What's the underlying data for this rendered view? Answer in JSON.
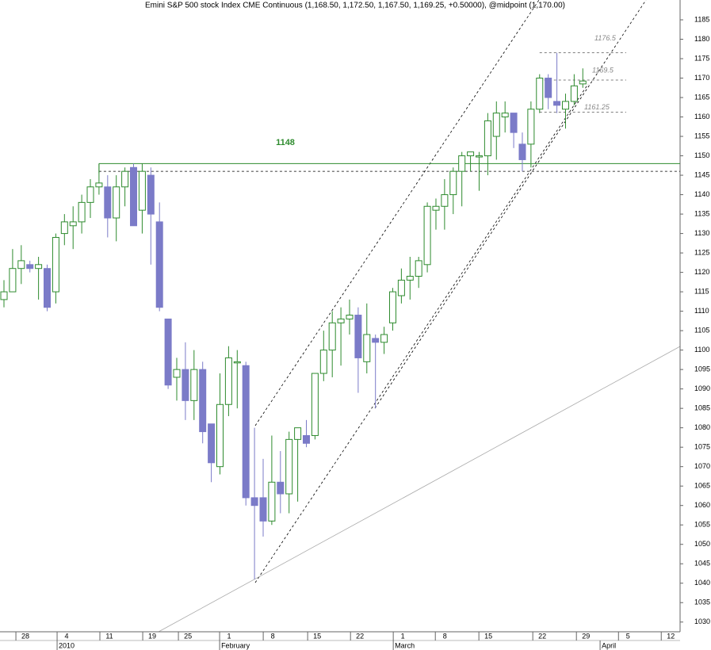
{
  "chart_data": {
    "type": "candlestick",
    "title": "Emini S&P 500 stock Index CME Continuous (1,168.50, 1,172.50, 1,167.50, 1,169.25, +0.50000), @midpoint (1,170.00)",
    "x": [
      0,
      1,
      2,
      3,
      4,
      5,
      6,
      7,
      8,
      9,
      10,
      11,
      12,
      13,
      14,
      15,
      16,
      17,
      18,
      19,
      20,
      21,
      22,
      23,
      24,
      25,
      26,
      27,
      28,
      29,
      30,
      31,
      32,
      33,
      34,
      35,
      36,
      37,
      38,
      39,
      40,
      41,
      42,
      43,
      44,
      45,
      46,
      47,
      48,
      49,
      50,
      51,
      52,
      53,
      54,
      55,
      56,
      57,
      58,
      59,
      60,
      61,
      62,
      63,
      64,
      65,
      66,
      67
    ],
    "open": [
      1113,
      1115,
      1121,
      1122,
      1121,
      1121,
      1115,
      1130,
      1132,
      1133,
      1138,
      1142,
      1142,
      1134,
      1142,
      1147,
      1136,
      1145,
      1133,
      1108,
      1093,
      1095,
      1087,
      1095,
      1081,
      1070,
      1086,
      1097,
      1096,
      1062,
      1062,
      1056,
      1066,
      1063,
      1077,
      1078,
      1078,
      1094,
      1100,
      1107,
      1108,
      1109,
      1097,
      1103,
      1102,
      1107,
      1114,
      1118,
      1119,
      1122,
      1136,
      1137,
      1140,
      1146,
      1150,
      1150,
      1150,
      1155,
      1160,
      1161,
      1153,
      1153,
      1162,
      1170,
      1164,
      1162,
      1164,
      1168.5
    ],
    "high": [
      1118,
      1126,
      1127,
      1123,
      1124,
      1122,
      1130,
      1135,
      1137,
      1140,
      1144,
      1148,
      1145,
      1145,
      1147,
      1148,
      1148,
      1147,
      1138,
      1108,
      1098,
      1102,
      1100,
      1097,
      1081,
      1094,
      1101,
      1100,
      1097,
      1080,
      1072,
      1078,
      1074,
      1079,
      1080,
      1082,
      1094,
      1105,
      1110,
      1111,
      1113,
      1111,
      1112,
      1104,
      1106,
      1116,
      1121,
      1124,
      1124,
      1138,
      1139,
      1144,
      1147,
      1151,
      1151,
      1151,
      1161,
      1164,
      1164,
      1161,
      1156,
      1164,
      1171,
      1171,
      1176.5,
      1166,
      1171,
      1172.5
    ],
    "low": [
      1111,
      1115,
      1117,
      1120,
      1113,
      1110,
      1112,
      1127,
      1126,
      1130,
      1134,
      1140,
      1129,
      1128,
      1137,
      1132,
      1130,
      1122,
      1110,
      1090,
      1087,
      1082,
      1082,
      1076,
      1066,
      1068,
      1083,
      1085,
      1060,
      1041,
      1052,
      1055,
      1058,
      1058,
      1061,
      1075,
      1077,
      1092,
      1093,
      1096,
      1104,
      1089,
      1094,
      1085,
      1099,
      1105,
      1112,
      1113,
      1116,
      1120,
      1131,
      1131,
      1135,
      1137,
      1146,
      1141,
      1145,
      1149,
      1156,
      1152,
      1146,
      1147,
      1161,
      1162,
      1161,
      1157,
      1163,
      1167.5
    ],
    "close": [
      1115,
      1121,
      1123,
      1121,
      1122,
      1111,
      1129,
      1133,
      1133,
      1138,
      1142,
      1143,
      1134,
      1142,
      1146,
      1132,
      1146,
      1135,
      1111,
      1091,
      1095,
      1087,
      1095,
      1079,
      1071,
      1086,
      1098,
      1097,
      1062,
      1060,
      1056,
      1066,
      1063,
      1077,
      1080,
      1076,
      1094,
      1100,
      1107,
      1108,
      1109,
      1098,
      1104,
      1102,
      1104,
      1115,
      1118,
      1119,
      1123,
      1137,
      1137,
      1140,
      1146,
      1150,
      1151,
      1150,
      1159,
      1161,
      1161,
      1156,
      1149,
      1162,
      1170,
      1165,
      1163,
      1164,
      1168,
      1169.25
    ],
    "up_color": "#2e8b2e",
    "down_color": "#7b7bc8",
    "xlim": [
      -0.46,
      78.26
    ],
    "ylim": [
      1027.5,
      1190.1
    ],
    "yticks": [
      1030,
      1035,
      1040,
      1045,
      1050,
      1055,
      1060,
      1065,
      1070,
      1075,
      1080,
      1085,
      1090,
      1095,
      1100,
      1105,
      1110,
      1115,
      1120,
      1125,
      1130,
      1135,
      1140,
      1145,
      1150,
      1155,
      1160,
      1165,
      1170,
      1175,
      1180,
      1185
    ],
    "xticks": [
      {
        "value": 1.38,
        "label": "28"
      },
      {
        "value": 6.15,
        "label": "4"
      },
      {
        "value": 11.1,
        "label": "11"
      },
      {
        "value": 16.06,
        "label": "19"
      },
      {
        "value": 20.19,
        "label": "25"
      },
      {
        "value": 24.96,
        "label": "1"
      },
      {
        "value": 30.01,
        "label": "8"
      },
      {
        "value": 35.15,
        "label": "15"
      },
      {
        "value": 40.11,
        "label": "22"
      },
      {
        "value": 45.06,
        "label": "1"
      },
      {
        "value": 49.93,
        "label": "8"
      },
      {
        "value": 54.97,
        "label": "15"
      },
      {
        "value": 61.21,
        "label": "22"
      },
      {
        "value": 66.26,
        "label": "29"
      },
      {
        "value": 71.13,
        "label": "5"
      },
      {
        "value": 76.08,
        "label": "12"
      }
    ],
    "months": [
      {
        "value": 6.15,
        "label": "2010"
      },
      {
        "value": 24.96,
        "label": "February"
      },
      {
        "value": 45.06,
        "label": "March"
      },
      {
        "value": 69.0,
        "label": "April"
      }
    ],
    "resistance": 1148,
    "resistance_dashed": 1146,
    "levels": [
      1176.5,
      1169.5,
      1161.25
    ]
  }
}
